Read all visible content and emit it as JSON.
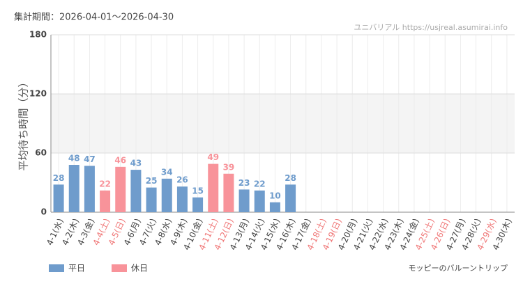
{
  "header": "集計期間：2026-04-01～2026-04-30",
  "watermark": "ユニバリアル https://usjreal.asumirai.info",
  "footer": "モッピーのバルーントリップ",
  "chart_data": {
    "type": "bar",
    "y_label": "平均待ち時間（分）",
    "categories": [
      "4-1(水)",
      "4-2(木)",
      "4-3(金)",
      "4-4(土)",
      "4-5(日)",
      "4-6(月)",
      "4-7(火)",
      "4-8(水)",
      "4-9(木)",
      "4-10(金)",
      "4-11(土)",
      "4-12(日)",
      "4-13(月)",
      "4-14(火)",
      "4-15(水)",
      "4-16(木)",
      "4-17(金)",
      "4-18(土)",
      "4-19(日)",
      "4-20(月)",
      "4-21(火)",
      "4-22(水)",
      "4-23(木)",
      "4-24(金)",
      "4-25(土)",
      "4-26(日)",
      "4-27(月)",
      "4-28(火)",
      "4-29(水)",
      "4-30(木)"
    ],
    "category_colors": [
      "#444",
      "#444",
      "#444",
      "#f07878",
      "#f07878",
      "#444",
      "#444",
      "#444",
      "#444",
      "#444",
      "#f07878",
      "#f07878",
      "#444",
      "#444",
      "#444",
      "#444",
      "#444",
      "#f07878",
      "#f07878",
      "#444",
      "#444",
      "#444",
      "#444",
      "#444",
      "#f07878",
      "#f07878",
      "#444",
      "#444",
      "#f07878",
      "#444"
    ],
    "series": [
      {
        "name": "平日",
        "color": "#6f9ccc",
        "values": [
          28,
          48,
          47,
          null,
          null,
          43,
          25,
          34,
          26,
          15,
          null,
          null,
          23,
          22,
          10,
          28,
          null,
          null,
          null,
          null,
          null,
          null,
          null,
          null,
          null,
          null,
          null,
          null,
          null,
          null
        ]
      },
      {
        "name": "休日",
        "color": "#f8939a",
        "values": [
          null,
          null,
          null,
          22,
          46,
          null,
          null,
          null,
          null,
          null,
          49,
          39,
          null,
          null,
          null,
          null,
          null,
          null,
          null,
          null,
          null,
          null,
          null,
          null,
          null,
          null,
          null,
          null,
          null,
          null
        ]
      }
    ],
    "ylim": [
      0,
      180
    ],
    "yticks": [
      0,
      60,
      120,
      180
    ],
    "shaded_range": [
      60,
      120
    ],
    "grid": true
  }
}
